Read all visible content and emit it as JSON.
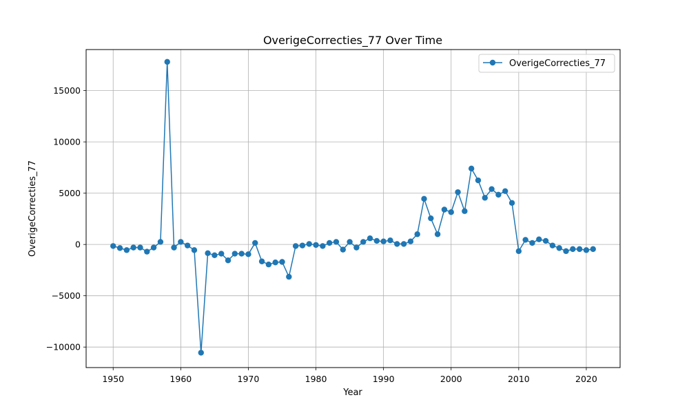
{
  "chart_data": {
    "type": "line",
    "title": "OverigeCorrecties_77 Over Time",
    "xlabel": "Year",
    "ylabel": "OverigeCorrecties_77",
    "xlim": [
      1946,
      2025
    ],
    "ylim": [
      -12000,
      19000
    ],
    "xticks": [
      1950,
      1960,
      1970,
      1980,
      1990,
      2000,
      2010,
      2020
    ],
    "xtick_labels": [
      "1950",
      "1960",
      "1970",
      "1980",
      "1990",
      "2000",
      "2010",
      "2020"
    ],
    "yticks": [
      -10000,
      -5000,
      0,
      5000,
      10000,
      15000
    ],
    "ytick_labels": [
      "−10000",
      "−5000",
      "0",
      "5000",
      "10000",
      "15000"
    ],
    "grid": true,
    "legend_position": "upper right",
    "x": [
      1950,
      1951,
      1952,
      1953,
      1954,
      1955,
      1956,
      1957,
      1958,
      1959,
      1960,
      1961,
      1962,
      1963,
      1964,
      1965,
      1966,
      1967,
      1968,
      1969,
      1970,
      1971,
      1972,
      1973,
      1974,
      1975,
      1976,
      1977,
      1978,
      1979,
      1980,
      1981,
      1982,
      1983,
      1984,
      1985,
      1986,
      1987,
      1988,
      1989,
      1990,
      1991,
      1992,
      1993,
      1994,
      1995,
      1996,
      1997,
      1998,
      1999,
      2000,
      2001,
      2002,
      2003,
      2004,
      2005,
      2006,
      2007,
      2008,
      2009,
      2010,
      2011,
      2012,
      2013,
      2014,
      2015,
      2016,
      2017,
      2018,
      2019,
      2020,
      2021
    ],
    "series": [
      {
        "name": "OverigeCorrecties_77",
        "color": "#1f77b4",
        "marker": "circle",
        "values": [
          -150,
          -350,
          -550,
          -300,
          -300,
          -700,
          -300,
          250,
          17800,
          -300,
          250,
          -100,
          -550,
          -10550,
          -850,
          -1050,
          -900,
          -1550,
          -900,
          -900,
          -950,
          150,
          -1650,
          -1950,
          -1750,
          -1700,
          -3150,
          -150,
          -100,
          50,
          -50,
          -150,
          150,
          250,
          -500,
          250,
          -300,
          250,
          600,
          350,
          300,
          400,
          50,
          50,
          300,
          1000,
          4450,
          2550,
          1000,
          3400,
          3150,
          5100,
          3250,
          7400,
          6250,
          4550,
          5400,
          4850,
          5200,
          4050,
          -650,
          450,
          150,
          500,
          350,
          -100,
          -350,
          -650,
          -450,
          -450,
          -550,
          -450
        ]
      }
    ]
  }
}
